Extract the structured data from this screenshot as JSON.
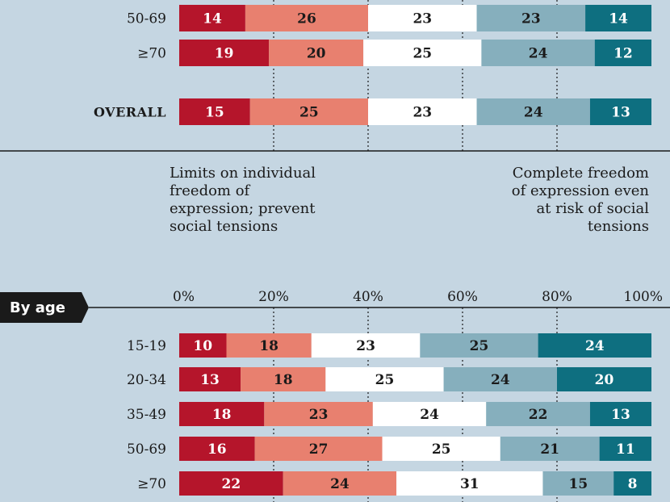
{
  "colors": [
    "#b5152b",
    "#e8806f",
    "#ffffff",
    "#86afbd",
    "#0e6f80"
  ],
  "label_colors": [
    "#ffffff",
    "#1a1a1a",
    "#1a1a1a",
    "#1a1a1a",
    "#ffffff"
  ],
  "chart_data": [
    {
      "type": "bar",
      "orientation": "horizontal",
      "stacked": true,
      "xlim": [
        0,
        100
      ],
      "categories": [
        "50-69",
        "≥70",
        "OVERALL"
      ],
      "series": [
        {
          "values": [
            14,
            19,
            15
          ]
        },
        {
          "values": [
            26,
            20,
            25
          ]
        },
        {
          "values": [
            23,
            25,
            23
          ]
        },
        {
          "values": [
            23,
            24,
            24
          ]
        },
        {
          "values": [
            14,
            12,
            13
          ]
        }
      ]
    },
    {
      "type": "bar",
      "orientation": "horizontal",
      "stacked": true,
      "title": "By age",
      "xlim": [
        0,
        100
      ],
      "ticks": [
        "0%",
        "20%",
        "40%",
        "60%",
        "80%",
        "100%"
      ],
      "categories": [
        "15-19",
        "20-34",
        "35-49",
        "50-69",
        "≥70"
      ],
      "series": [
        {
          "values": [
            10,
            13,
            18,
            16,
            22
          ]
        },
        {
          "values": [
            18,
            18,
            23,
            27,
            24
          ]
        },
        {
          "values": [
            23,
            25,
            24,
            25,
            31
          ]
        },
        {
          "values": [
            25,
            24,
            22,
            21,
            15
          ]
        },
        {
          "values": [
            24,
            20,
            13,
            11,
            8
          ]
        }
      ]
    }
  ],
  "notes": {
    "left": [
      "Limits on individual",
      "freedom of",
      "expression; prevent",
      "social tensions"
    ],
    "right": [
      "Complete freedom",
      "of expression even",
      "at risk of social",
      "tensions"
    ]
  }
}
